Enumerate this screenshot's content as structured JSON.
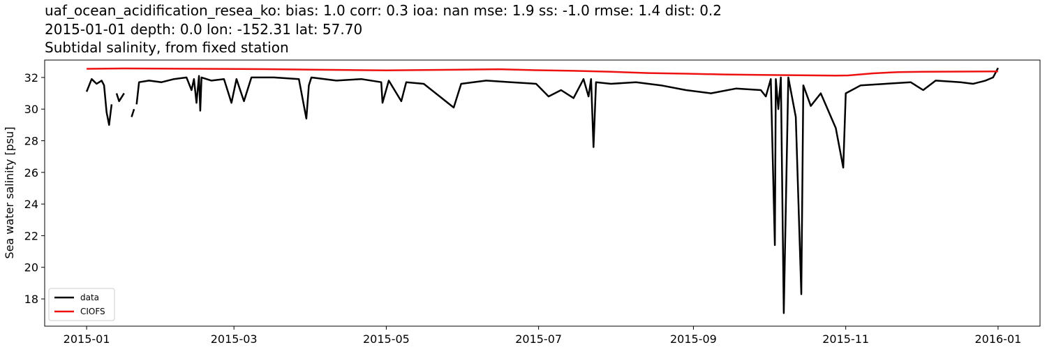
{
  "chart_data": {
    "type": "line",
    "title": "uaf_ocean_acidification_resea_ko: bias: 1.0  corr: 0.3  ioa: nan  mse: 1.9  ss: -1.0  rmse: 1.4  dist: 0.2",
    "subtitle": "2015-01-01 depth: 0.0 lon: -152.31 lat: 57.70",
    "subtitle2": "Subtidal salinity, from fixed station",
    "y_label": "Sea water salinity [psu]",
    "xlim": [
      -16.8,
      381.8
    ],
    "xticks": [
      {
        "value": 0,
        "label": "2015-01"
      },
      {
        "value": 59,
        "label": "2015-03"
      },
      {
        "value": 120,
        "label": "2015-05"
      },
      {
        "value": 181,
        "label": "2015-07"
      },
      {
        "value": 243,
        "label": "2015-09"
      },
      {
        "value": 304,
        "label": "2015-11"
      },
      {
        "value": 365,
        "label": "2016-01"
      }
    ],
    "ylim": [
      16.28,
      33.1
    ],
    "yticks": [
      18,
      20,
      22,
      24,
      26,
      28,
      30,
      32
    ],
    "grid": false,
    "legend": "lower left",
    "series": [
      {
        "name": "data",
        "color": "#000000",
        "x": [
          0,
          2,
          4,
          6,
          7,
          8,
          9,
          10,
          11,
          12,
          13,
          15,
          16,
          18,
          19,
          19.5,
          20,
          21,
          25,
          30,
          35,
          40,
          42,
          43,
          44,
          45,
          45.5,
          46,
          50,
          55,
          58,
          60,
          63,
          66,
          75,
          85,
          88,
          89,
          90,
          100,
          110,
          118,
          118.5,
          121,
          126,
          128,
          135,
          147,
          150,
          160,
          170,
          180,
          185,
          190,
          195,
          199,
          201,
          202,
          203,
          204,
          210,
          220,
          230,
          240,
          250,
          260,
          270,
          272,
          274,
          275.6,
          276,
          277,
          278,
          279.2,
          281,
          284,
          286.2,
          287,
          290,
          294,
          300,
          303,
          304,
          310,
          320,
          330,
          335,
          340,
          350,
          355,
          360,
          363,
          365
        ],
        "values": [
          31.1,
          31.9,
          31.6,
          31.8,
          31.5,
          29.8,
          29.0,
          30.3,
          null,
          31.0,
          30.5,
          31.0,
          null,
          29.5,
          30.0,
          null,
          30.3,
          31.7,
          31.8,
          31.7,
          31.9,
          32.0,
          31.2,
          31.9,
          30.4,
          32.1,
          29.9,
          32.0,
          31.8,
          31.9,
          30.4,
          31.9,
          30.5,
          32.0,
          32.0,
          31.9,
          29.4,
          31.5,
          32.0,
          31.8,
          31.9,
          31.7,
          30.4,
          31.8,
          30.5,
          31.7,
          31.6,
          30.1,
          31.6,
          31.8,
          31.7,
          31.6,
          30.8,
          31.2,
          30.7,
          31.9,
          30.8,
          31.9,
          27.6,
          31.7,
          31.6,
          31.7,
          31.5,
          31.2,
          31.0,
          31.3,
          31.2,
          30.8,
          31.9,
          21.4,
          31.9,
          30.0,
          32.0,
          17.1,
          32.0,
          29.5,
          18.3,
          31.5,
          30.2,
          31.0,
          28.8,
          26.3,
          31.0,
          31.5,
          31.6,
          31.7,
          31.2,
          31.8,
          31.7,
          31.6,
          31.8,
          32.0,
          32.6
        ]
      },
      {
        "name": "CIOFS",
        "color": "#ee1111",
        "x": [
          0,
          15,
          30,
          45,
          60,
          75,
          90,
          105,
          120,
          135,
          150,
          165,
          180,
          195,
          210,
          225,
          240,
          255,
          270,
          285,
          300,
          305,
          315,
          325,
          335,
          350,
          365
        ],
        "values": [
          32.55,
          32.57,
          32.56,
          32.55,
          32.54,
          32.52,
          32.49,
          32.47,
          32.45,
          32.47,
          32.49,
          32.52,
          32.46,
          32.42,
          32.36,
          32.28,
          32.24,
          32.19,
          32.16,
          32.14,
          32.12,
          32.13,
          32.26,
          32.34,
          32.36,
          32.37,
          32.38
        ]
      }
    ]
  }
}
